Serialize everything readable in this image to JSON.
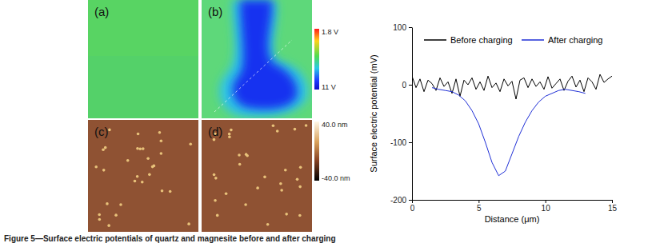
{
  "caption": "Figure 5—Surface electric potentials of quartz and magnesite before and after charging",
  "panels": {
    "labels": [
      "(a)",
      "(b)",
      "(c)",
      "(d)"
    ],
    "potential_colorbar": {
      "range": [
        11,
        1.8
      ],
      "ticks": [
        {
          "value": 1.8,
          "label": "1.8 V"
        },
        {
          "value": 11,
          "label": "11 V"
        }
      ]
    },
    "height_colorbar": {
      "range": [
        -40,
        40
      ],
      "ticks": [
        {
          "value": 40,
          "label": "40.0 nm"
        },
        {
          "value": -40,
          "label": "-40.0 nm"
        }
      ]
    }
  },
  "chart_data": {
    "type": "line",
    "xlabel": "Distance (μm)",
    "ylabel": "Surface electric potential (mV)",
    "xlim": [
      0,
      15
    ],
    "xticks": [
      0,
      5,
      10,
      15
    ],
    "ylim": [
      -200,
      100
    ],
    "yticks": [
      -200,
      -100,
      0,
      100
    ],
    "legend": "top",
    "series": [
      {
        "name": "Before charging",
        "color": "#000000",
        "x": [
          0,
          0.3,
          0.6,
          0.9,
          1.2,
          1.5,
          1.8,
          2.1,
          2.4,
          2.7,
          3,
          3.3,
          3.6,
          3.9,
          4.2,
          4.5,
          4.8,
          5.1,
          5.4,
          5.7,
          6,
          6.3,
          6.6,
          6.9,
          7.2,
          7.5,
          7.8,
          8.1,
          8.4,
          8.7,
          9,
          9.3,
          9.6,
          9.9,
          10.2,
          10.5,
          10.8,
          11.1,
          11.4,
          11.7,
          12,
          12.3,
          12.6,
          12.9,
          13.2,
          13.5,
          13.8,
          14.1,
          14.4,
          14.7,
          15
        ],
        "values": [
          15,
          -5,
          10,
          -12,
          8,
          2,
          -10,
          12,
          -3,
          5,
          -15,
          10,
          -20,
          8,
          0,
          12,
          -8,
          5,
          -10,
          15,
          -5,
          3,
          -12,
          10,
          -2,
          6,
          -25,
          8,
          12,
          -5,
          10,
          -3,
          5,
          -8,
          14,
          -6,
          2,
          10,
          -10,
          6,
          15,
          -4,
          8,
          -12,
          12,
          5,
          -8,
          18,
          4,
          10,
          15
        ]
      },
      {
        "name": "After charging",
        "color": "#1f2fd6",
        "x": [
          1.5,
          2,
          2.5,
          3,
          3.5,
          4,
          4.5,
          5,
          5.5,
          6,
          6.5,
          7,
          7.5,
          8,
          8.5,
          9,
          9.5,
          10,
          10.5,
          11,
          11.5,
          12,
          12.5,
          13
        ],
        "values": [
          -5,
          -8,
          -10,
          -12,
          -18,
          -28,
          -45,
          -68,
          -100,
          -135,
          -158,
          -150,
          -120,
          -90,
          -65,
          -45,
          -30,
          -20,
          -15,
          -10,
          -8,
          -10,
          -12,
          -15
        ]
      }
    ]
  }
}
